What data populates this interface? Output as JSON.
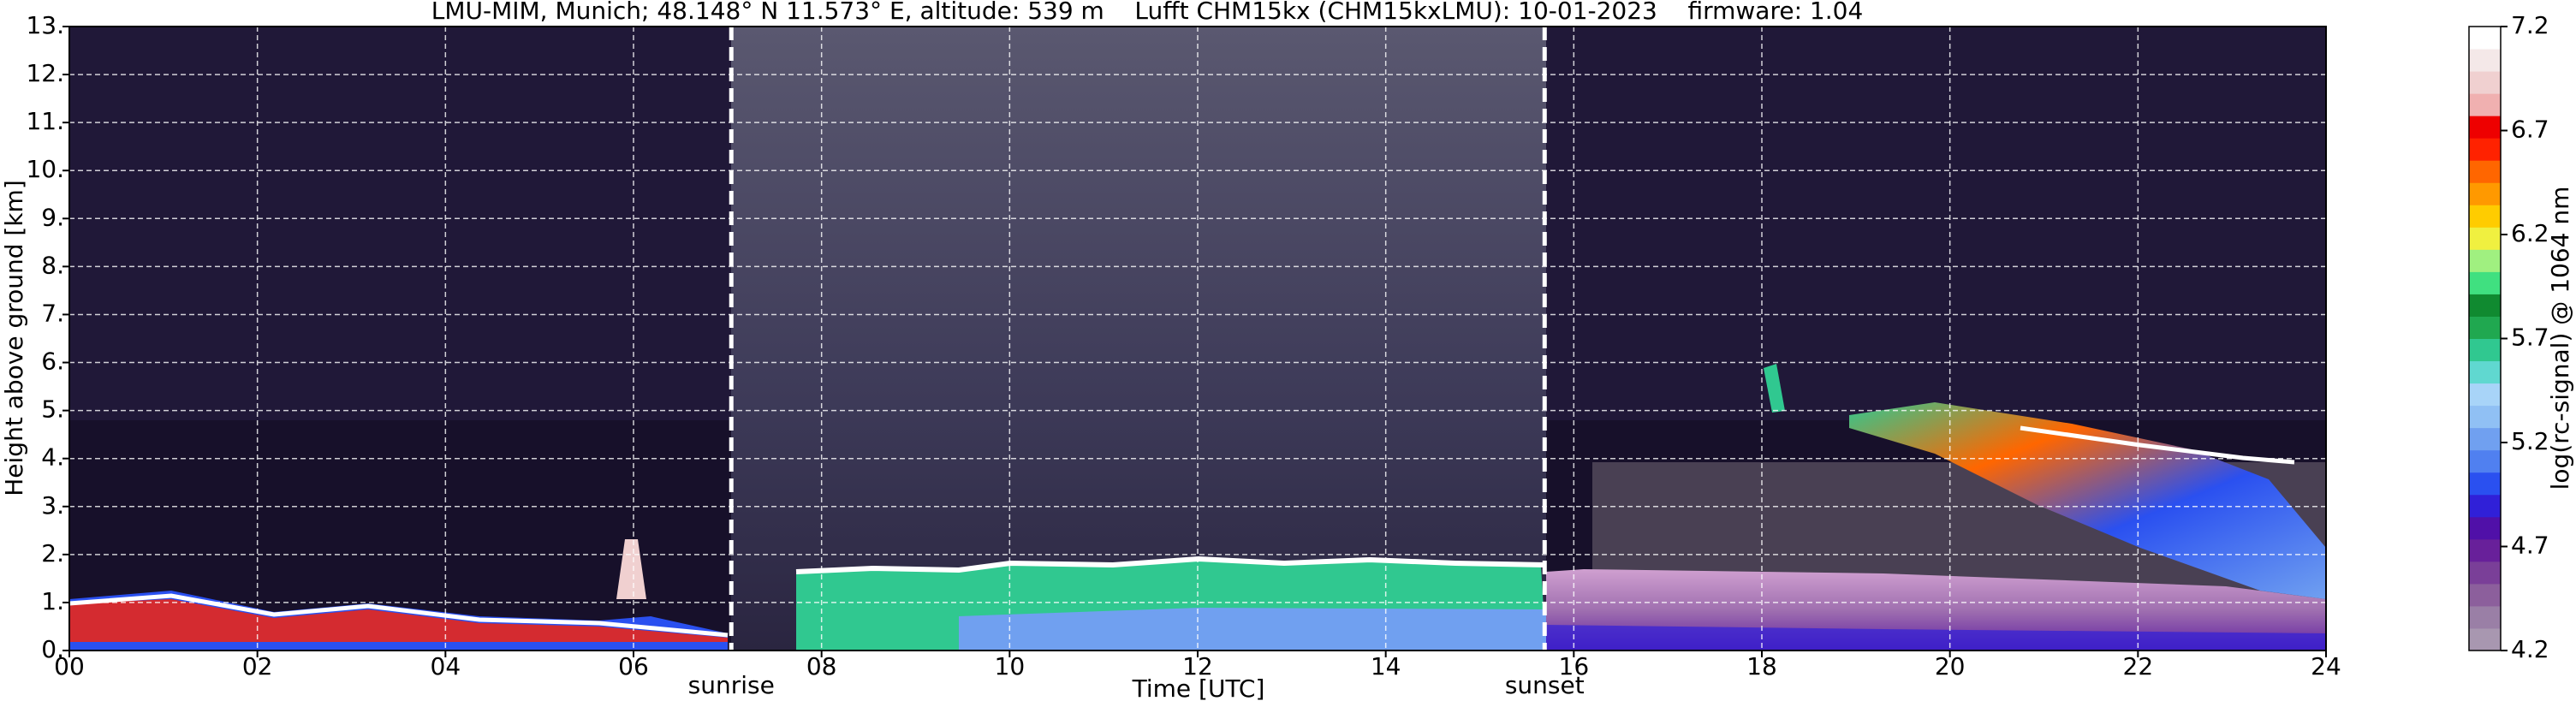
{
  "chart_data": {
    "type": "heatmap",
    "title": "LMU-MIM, Munich; 48.148° N 11.573° E, altitude: 539 m    Lufft CHM15kx (CHM15kxLMU): 10-01-2023    firmware: 1.04",
    "xlabel": "Time [UTC]",
    "ylabel": "Height above ground [km]",
    "xlim": [
      0,
      24
    ],
    "xticks": [
      {
        "value": 0,
        "label": "00"
      },
      {
        "value": 2,
        "label": "02"
      },
      {
        "value": 4,
        "label": "04"
      },
      {
        "value": 6,
        "label": "06"
      },
      {
        "value": 8,
        "label": "08"
      },
      10,
      12,
      14,
      16,
      18,
      20,
      22,
      24
    ],
    "ylim": [
      0,
      13
    ],
    "yticks": [
      {
        "value": 0,
        "label": "0."
      },
      {
        "value": 1,
        "label": "1."
      },
      {
        "value": 2,
        "label": "2."
      },
      {
        "value": 3,
        "label": "3."
      },
      {
        "value": 4,
        "label": "4."
      },
      {
        "value": 5,
        "label": "5."
      },
      {
        "value": 6,
        "label": "6."
      },
      {
        "value": 7,
        "label": "7."
      },
      {
        "value": 8,
        "label": "8."
      },
      {
        "value": 9,
        "label": "9."
      },
      {
        "value": 10,
        "label": "10."
      },
      {
        "value": 11,
        "label": "11."
      },
      {
        "value": 12,
        "label": "12."
      },
      {
        "value": 13,
        "label": "13."
      }
    ],
    "grid": true,
    "events": [
      {
        "label": "sunrise",
        "x": 7.04
      },
      {
        "label": "sunset",
        "x": 15.69
      }
    ],
    "colorbar": {
      "label": "log(rc-signal) @ 1064 nm",
      "clim": [
        4.2,
        7.2
      ],
      "ticks": [
        4.2,
        4.7,
        5.2,
        5.7,
        6.2,
        6.7,
        7.2
      ],
      "colors": [
        "#a897b0",
        "#9a7fa6",
        "#8c5f9c",
        "#7a3f98",
        "#68209a",
        "#5010a8",
        "#3020d8",
        "#2a50f0",
        "#5080f0",
        "#70a0f0",
        "#90c0f4",
        "#a8d4f8",
        "#60d8d0",
        "#30c890",
        "#20a850",
        "#108a30",
        "#40e080",
        "#a0f080",
        "#f0f040",
        "#ffcc00",
        "#ff9900",
        "#ff6600",
        "#ff2200",
        "#ee0000",
        "#f0b0b0",
        "#f0d0d0",
        "#f4e8e8",
        "#ffffff"
      ]
    }
  }
}
